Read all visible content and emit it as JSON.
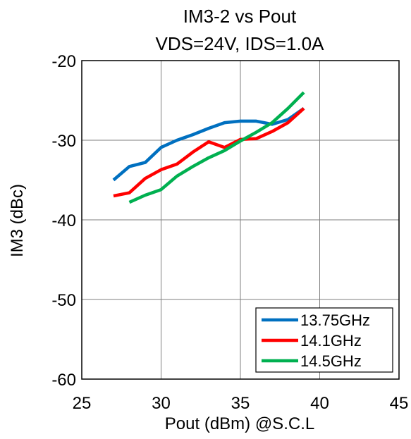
{
  "chart_data": {
    "type": "line",
    "title": [
      "IM3-2 vs Pout",
      "VDS=24V, IDS=1.0A"
    ],
    "xlabel": "Pout (dBm) @S.C.L",
    "ylabel": "IM3 (dBc)",
    "xlim": [
      25,
      45
    ],
    "ylim": [
      -60,
      -20
    ],
    "xticks": [
      "25",
      "30",
      "35",
      "40",
      "45"
    ],
    "yticks": [
      "-20",
      "-30",
      "-40",
      "-50",
      "-60"
    ],
    "xtick_values": [
      25,
      30,
      35,
      40,
      45
    ],
    "ytick_values": [
      -20,
      -30,
      -40,
      -50,
      -60
    ],
    "grid": true,
    "legend_position": "bottom-right",
    "series": [
      {
        "name": "13.75GHz",
        "color": "#0070c0",
        "x": [
          27,
          28,
          29,
          30,
          31,
          32,
          33,
          34,
          35,
          36,
          37,
          38,
          39
        ],
        "y": [
          -35.0,
          -33.3,
          -32.8,
          -30.9,
          -30.0,
          -29.3,
          -28.5,
          -27.8,
          -27.6,
          -27.6,
          -28.0,
          -27.4,
          -26.0
        ]
      },
      {
        "name": "14.1GHz",
        "color": "#ff0000",
        "x": [
          27,
          28,
          29,
          30,
          31,
          32,
          33,
          34,
          35,
          36,
          37,
          38,
          39
        ],
        "y": [
          -37.0,
          -36.6,
          -34.8,
          -33.7,
          -33.0,
          -31.5,
          -30.2,
          -30.9,
          -29.9,
          -29.8,
          -28.9,
          -27.8,
          -26.0
        ]
      },
      {
        "name": "14.5GHz",
        "color": "#00b050",
        "x": [
          28,
          29,
          30,
          31,
          32,
          33,
          34,
          35,
          36,
          37,
          38,
          39
        ],
        "y": [
          -37.8,
          -36.9,
          -36.2,
          -34.5,
          -33.3,
          -32.2,
          -31.3,
          -30.1,
          -29.0,
          -27.8,
          -26.0,
          -24.0
        ]
      }
    ]
  }
}
